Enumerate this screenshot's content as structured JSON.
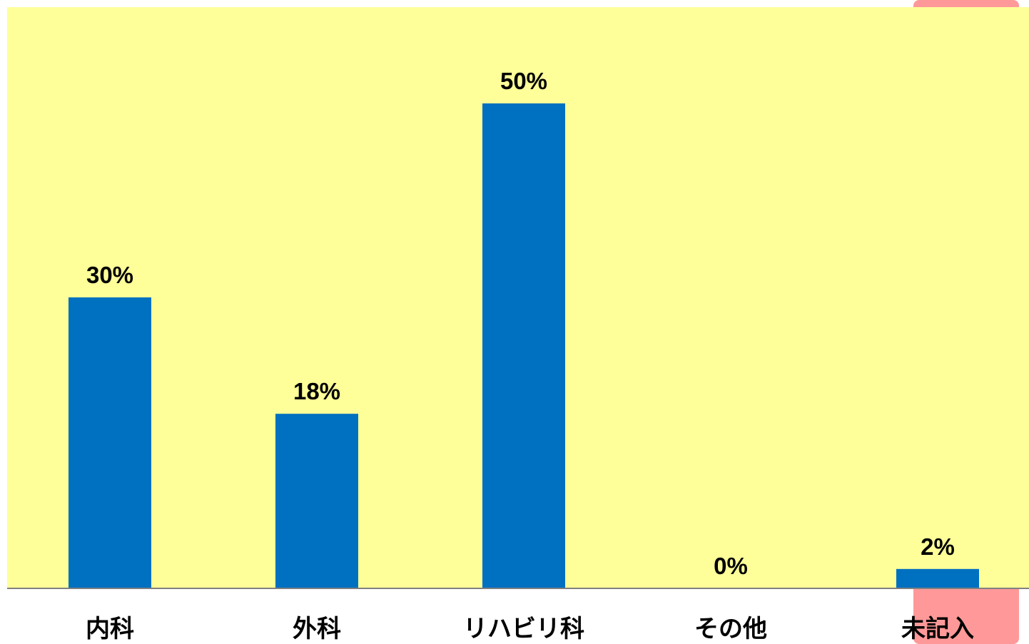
{
  "colors": {
    "plot_background": "#FFFF99",
    "bar": "#0070C0",
    "axis": "#808080",
    "accent_tab": "#FF9999"
  },
  "chart_data": {
    "type": "bar",
    "categories": [
      "内科",
      "外科",
      "リハビリ科",
      "その他",
      "未記入"
    ],
    "values": [
      30,
      18,
      50,
      0,
      2
    ],
    "value_labels": [
      "30%",
      "18%",
      "50%",
      "0%",
      "2%"
    ],
    "title": "",
    "xlabel": "",
    "ylabel": "",
    "ylim": [
      0,
      60
    ],
    "grid": false,
    "legend": "none"
  }
}
